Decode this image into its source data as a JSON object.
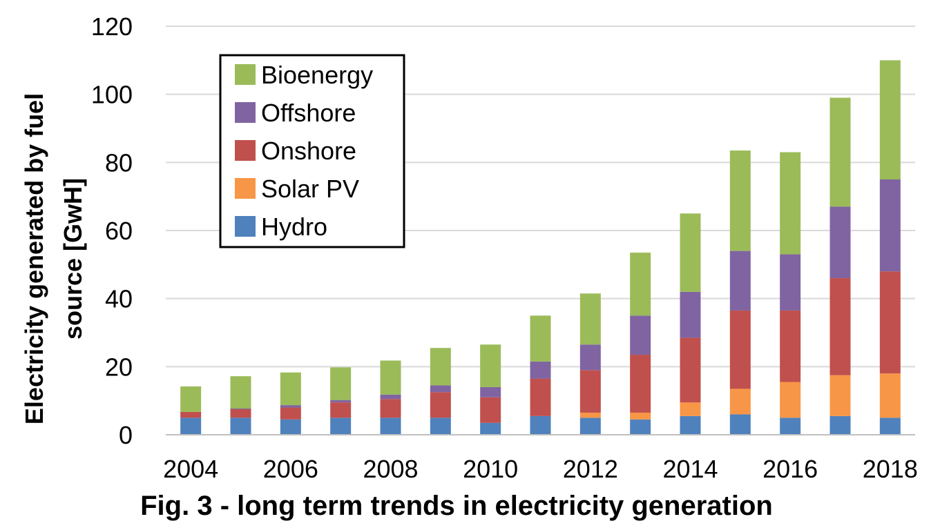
{
  "chart_data": {
    "type": "bar",
    "stacked": true,
    "caption": "Fig. 3 - long term trends in electricity generation",
    "ylabel_lines": [
      "Electricity generated by fuel",
      "source [GwH]"
    ],
    "xlabel": "",
    "ylim": [
      0,
      120
    ],
    "yticks": [
      0,
      20,
      40,
      60,
      80,
      100,
      120
    ],
    "grid": true,
    "legend_position": "top-left",
    "categories": [
      2004,
      2005,
      2006,
      2007,
      2008,
      2009,
      2010,
      2011,
      2012,
      2013,
      2014,
      2015,
      2016,
      2017,
      2018
    ],
    "xtick_labels": [
      "2004",
      "2006",
      "2008",
      "2010",
      "2012",
      "2014",
      "2016",
      "2018"
    ],
    "series": [
      {
        "name": "Hydro",
        "color": "#4f81bd",
        "values": [
          5,
          5,
          4.5,
          5,
          5,
          5,
          3.5,
          5.5,
          5,
          4.5,
          5.5,
          6,
          5,
          5.5,
          5
        ]
      },
      {
        "name": "Solar PV",
        "color": "#f79646",
        "values": [
          0,
          0,
          0,
          0,
          0,
          0,
          0,
          0,
          1.5,
          2,
          4,
          7.5,
          10.5,
          12,
          13
        ]
      },
      {
        "name": "Onshore",
        "color": "#c0504d",
        "values": [
          1.7,
          2.5,
          3.5,
          4.5,
          5.5,
          7.5,
          7.5,
          11,
          12.5,
          17,
          19,
          23,
          21,
          28.5,
          30
        ]
      },
      {
        "name": "Offshore",
        "color": "#8064a2",
        "values": [
          0,
          0.2,
          0.7,
          0.7,
          1.3,
          2,
          3,
          5,
          7.5,
          11.5,
          13.5,
          17.5,
          16.5,
          21,
          27
        ]
      },
      {
        "name": "Bioenergy",
        "color": "#9bbb59",
        "values": [
          7.5,
          9.5,
          9.6,
          9.6,
          10,
          11,
          12.5,
          13.5,
          15,
          18.5,
          23,
          29.5,
          30,
          32,
          35
        ]
      }
    ]
  }
}
